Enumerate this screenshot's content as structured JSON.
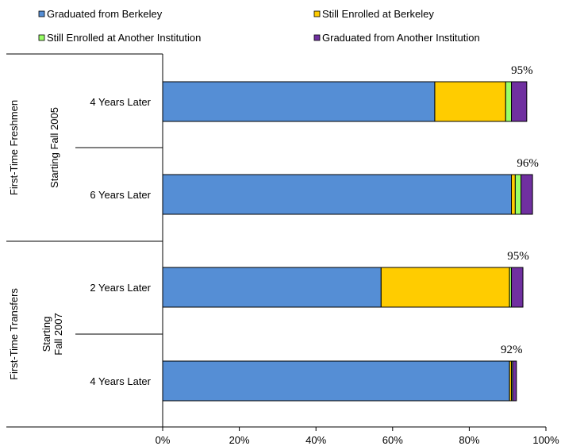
{
  "chart_data": {
    "type": "bar",
    "orientation": "horizontal",
    "stacked": true,
    "legend": {
      "placement": "top",
      "entries": [
        {
          "name": "Graduated from Berkeley",
          "color": "#558ED5"
        },
        {
          "name": "Still Enrolled at Berkeley",
          "color": "#FFCC00"
        },
        {
          "name": "Still Enrolled at Another Institution",
          "color": "#99FF66"
        },
        {
          "name": "Graduated from Another Institution",
          "color": "#7030A0"
        }
      ]
    },
    "groups": [
      {
        "label": "First-Time Freshmen",
        "sublabel_lines": [
          "Starting Fall 2005"
        ]
      },
      {
        "label": "First-Time  Transfers",
        "sublabel_lines": [
          "Starting",
          "Fall 2007"
        ]
      }
    ],
    "categories": [
      "4 Years Later",
      "6 Years Later",
      "2 Years Later",
      "4 Years Later"
    ],
    "category_group": [
      0,
      0,
      1,
      1
    ],
    "series": [
      {
        "name": "Graduated from Berkeley",
        "values": [
          71,
          91,
          57,
          90.5
        ]
      },
      {
        "name": "Still Enrolled at Berkeley",
        "values": [
          18.5,
          1,
          33.5,
          0.5
        ]
      },
      {
        "name": "Still Enrolled at Another Institution",
        "values": [
          1.5,
          1.5,
          0.5,
          0.3
        ]
      },
      {
        "name": "Graduated from Another Institution",
        "values": [
          4,
          3,
          3,
          1
        ]
      }
    ],
    "totals_labels": [
      "95%",
      "96%",
      "95%",
      "92%"
    ],
    "xlim": [
      0,
      100
    ],
    "x_ticks": [
      "0%",
      "20%",
      "40%",
      "60%",
      "80%",
      "100%"
    ],
    "grid": false
  }
}
